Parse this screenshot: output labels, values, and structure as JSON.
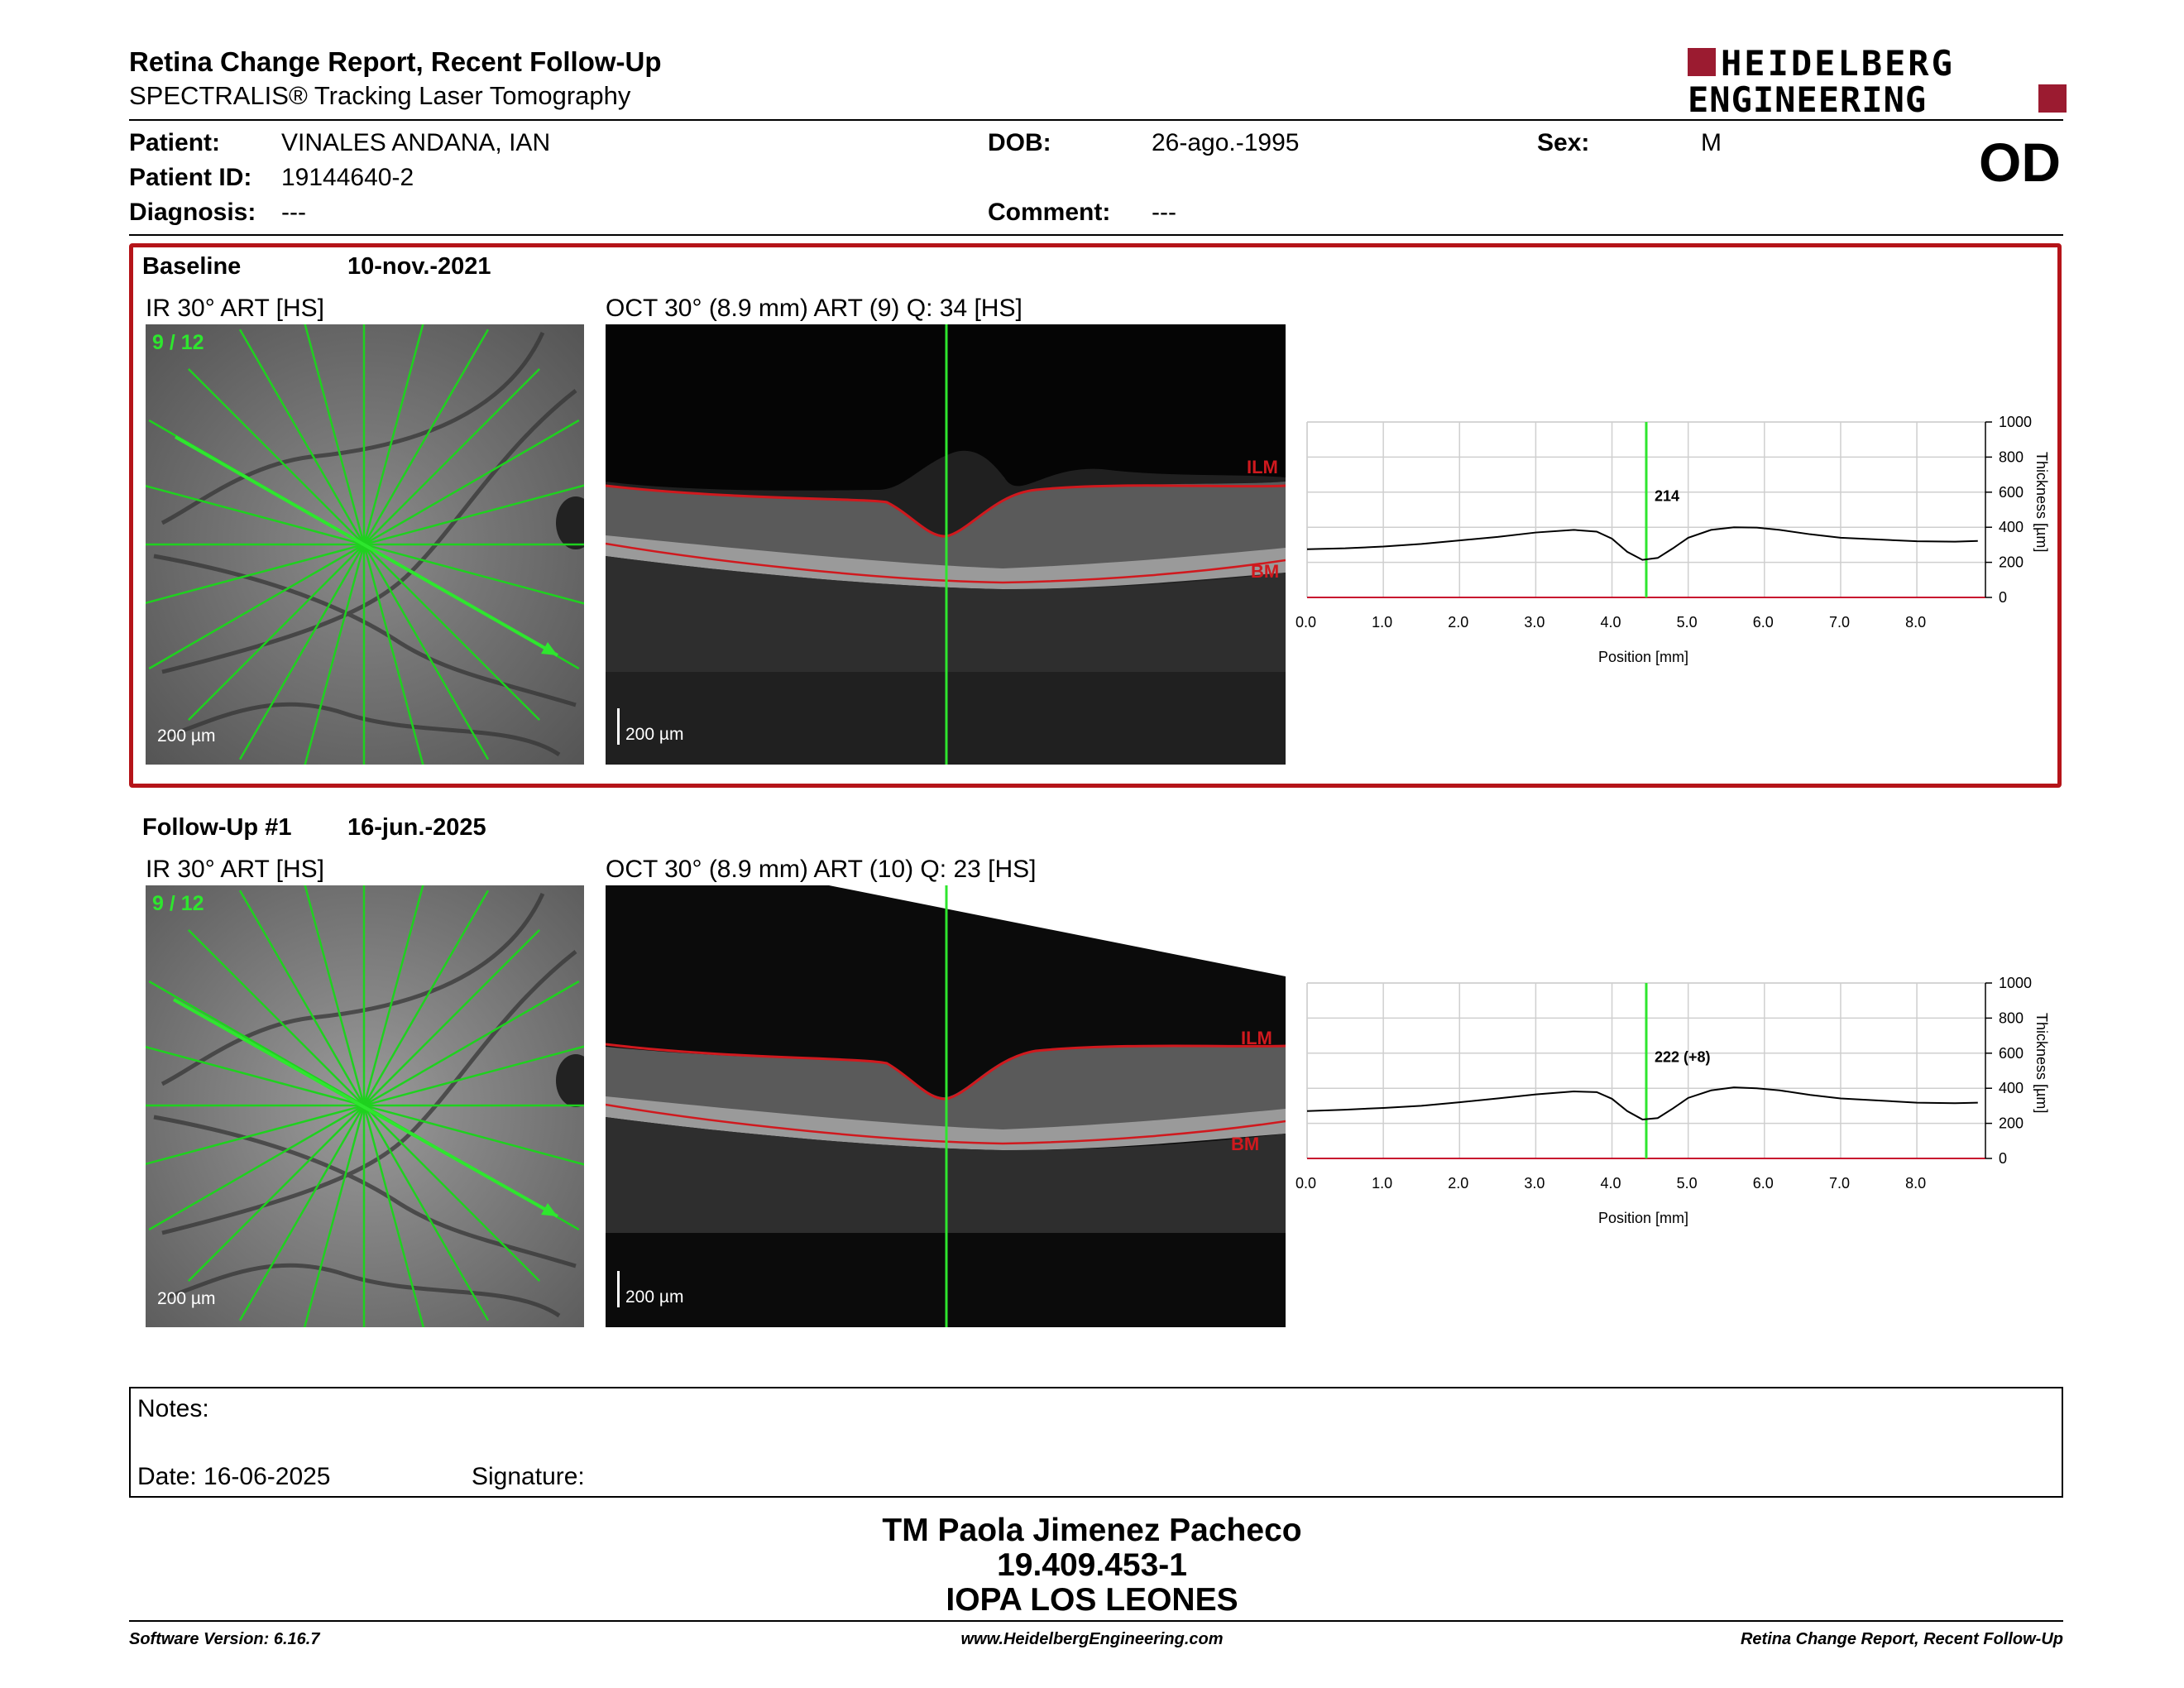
{
  "header": {
    "title": "Retina Change Report, Recent Follow-Up",
    "subtitle": "SPECTRALIS® Tracking Laser Tomography",
    "logo_line1": "HEIDELBERG",
    "logo_line2": "ENGINEERING",
    "brand_color": "#9b1b30"
  },
  "patient": {
    "patient_label": "Patient:",
    "patient_value": "VINALES ANDANA, IAN",
    "id_label": "Patient ID:",
    "id_value": "19144640-2",
    "diagnosis_label": "Diagnosis:",
    "diagnosis_value": "---",
    "dob_label": "DOB:",
    "dob_value": "26-ago.-1995",
    "comment_label": "Comment:",
    "comment_value": "---",
    "sex_label": "Sex:",
    "sex_value": "M",
    "eye": "OD"
  },
  "baseline": {
    "label": "Baseline",
    "date": "10-nov.-2021",
    "ir_label": "IR 30° ART [HS]",
    "scan_index": "9 / 12",
    "ir_scale": "200 µm",
    "oct_label": "OCT 30° (8.9 mm) ART (9) Q: 34 [HS]",
    "oct_scale": "200 µm",
    "ilm_label": "ILM",
    "bm_label": "BM",
    "thickness_marker": "214"
  },
  "followup": {
    "label": "Follow-Up #1",
    "date": "16-jun.-2025",
    "ir_label": "IR 30° ART [HS]",
    "scan_index": "9 / 12",
    "ir_scale": "200 µm",
    "oct_label": "OCT 30° (8.9 mm) ART (10) Q: 23 [HS]",
    "oct_scale": "200 µm",
    "ilm_label": "ILM",
    "bm_label": "BM",
    "thickness_marker": "222 (+8)"
  },
  "chart_data": [
    {
      "type": "line",
      "xlabel": "Position [mm]",
      "ylabel": "Thickness [µm]",
      "xlim": [
        0,
        8.9
      ],
      "ylim": [
        0,
        1000
      ],
      "xticks": [
        "0.0",
        "1.0",
        "2.0",
        "3.0",
        "4.0",
        "5.0",
        "6.0",
        "7.0",
        "8.0"
      ],
      "yticks": [
        "0",
        "200",
        "400",
        "600",
        "800",
        "1000"
      ],
      "marker_x": 4.45,
      "marker_label": "214",
      "x": [
        0,
        0.5,
        1.0,
        1.5,
        2.0,
        2.5,
        3.0,
        3.5,
        3.8,
        4.0,
        4.2,
        4.4,
        4.6,
        4.8,
        5.0,
        5.3,
        5.6,
        5.9,
        6.2,
        6.6,
        7.0,
        7.5,
        8.0,
        8.5,
        8.8
      ],
      "y": [
        275,
        280,
        290,
        305,
        325,
        345,
        370,
        385,
        375,
        335,
        260,
        214,
        225,
        280,
        340,
        385,
        400,
        398,
        385,
        360,
        340,
        330,
        320,
        318,
        322
      ],
      "grid": true
    },
    {
      "type": "line",
      "xlabel": "Position [mm]",
      "ylabel": "Thickness [µm]",
      "xlim": [
        0,
        8.9
      ],
      "ylim": [
        0,
        1000
      ],
      "xticks": [
        "0.0",
        "1.0",
        "2.0",
        "3.0",
        "4.0",
        "5.0",
        "6.0",
        "7.0",
        "8.0"
      ],
      "yticks": [
        "0",
        "200",
        "400",
        "600",
        "800",
        "1000"
      ],
      "marker_x": 4.45,
      "marker_label": "222 (+8)",
      "x": [
        0,
        0.5,
        1.0,
        1.5,
        2.0,
        2.5,
        3.0,
        3.5,
        3.8,
        4.0,
        4.2,
        4.4,
        4.6,
        4.8,
        5.0,
        5.3,
        5.6,
        5.9,
        6.2,
        6.6,
        7.0,
        7.5,
        8.0,
        8.5,
        8.8
      ],
      "y": [
        270,
        278,
        288,
        300,
        320,
        342,
        365,
        382,
        378,
        340,
        270,
        222,
        230,
        285,
        345,
        388,
        405,
        400,
        388,
        362,
        342,
        330,
        318,
        315,
        318
      ],
      "grid": true
    }
  ],
  "notes": {
    "notes_label": "Notes:",
    "date_label": "Date: 16-06-2025",
    "signature_label": "Signature:"
  },
  "signer": {
    "name": "TM Paola Jimenez Pacheco",
    "id": "19.409.453-1",
    "org": "IOPA LOS LEONES"
  },
  "footer": {
    "software": "Software Version: 6.16.7",
    "website": "www.HeidelbergEngineering.com",
    "report": "Retina Change Report, Recent Follow-Up"
  }
}
